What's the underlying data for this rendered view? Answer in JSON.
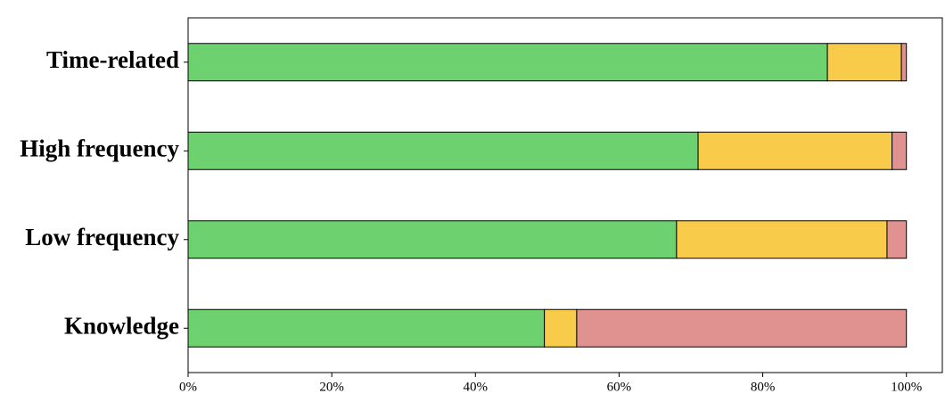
{
  "chart_data": {
    "type": "stacked-bar-horizontal",
    "categories": [
      "Time-related",
      "High frequency",
      "Low frequency",
      "Knowledge"
    ],
    "series": [
      {
        "color": "#6dd16f",
        "values": [
          89,
          71,
          68,
          49.6
        ]
      },
      {
        "color": "#f8cc4a",
        "values": [
          10.3,
          27,
          29.3,
          4.5
        ]
      },
      {
        "color": "#e09290",
        "values": [
          0.7,
          2,
          2.7,
          45.9
        ]
      }
    ],
    "xlim": [
      0,
      105
    ],
    "xticks": [
      {
        "value": 0,
        "label": "0%"
      },
      {
        "value": 20,
        "label": "20%"
      },
      {
        "value": 40,
        "label": "40%"
      },
      {
        "value": 60,
        "label": "60%"
      },
      {
        "value": 80,
        "label": "80%"
      },
      {
        "value": 100,
        "label": "100%"
      }
    ]
  }
}
